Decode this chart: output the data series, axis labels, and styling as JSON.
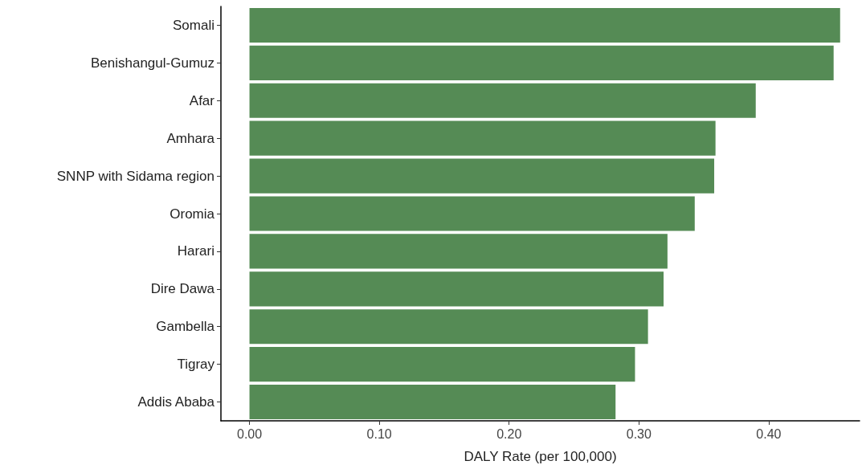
{
  "chart_data": {
    "type": "bar",
    "orientation": "horizontal",
    "xlabel": "DALY Rate (per 100,000)",
    "categories": [
      "Somali",
      "Benishangul-Gumuz",
      "Afar",
      "Amhara",
      "SNNP with Sidama region",
      "Oromia",
      "Harari",
      "Dire Dawa",
      "Gambella",
      "Tigray",
      "Addis Ababa"
    ],
    "values": [
      0.455,
      0.45,
      0.39,
      0.359,
      0.358,
      0.343,
      0.322,
      0.319,
      0.307,
      0.297,
      0.282
    ],
    "color": "#558b55",
    "xlim": [
      -0.022,
      0.47
    ],
    "xticks": [
      {
        "value": 0,
        "label": "0.00"
      },
      {
        "value": 0.1,
        "label": "0.10"
      },
      {
        "value": 0.2,
        "label": "0.20"
      },
      {
        "value": 0.3,
        "label": "0.30"
      },
      {
        "value": 0.4,
        "label": "0.40"
      }
    ],
    "grid": false
  }
}
